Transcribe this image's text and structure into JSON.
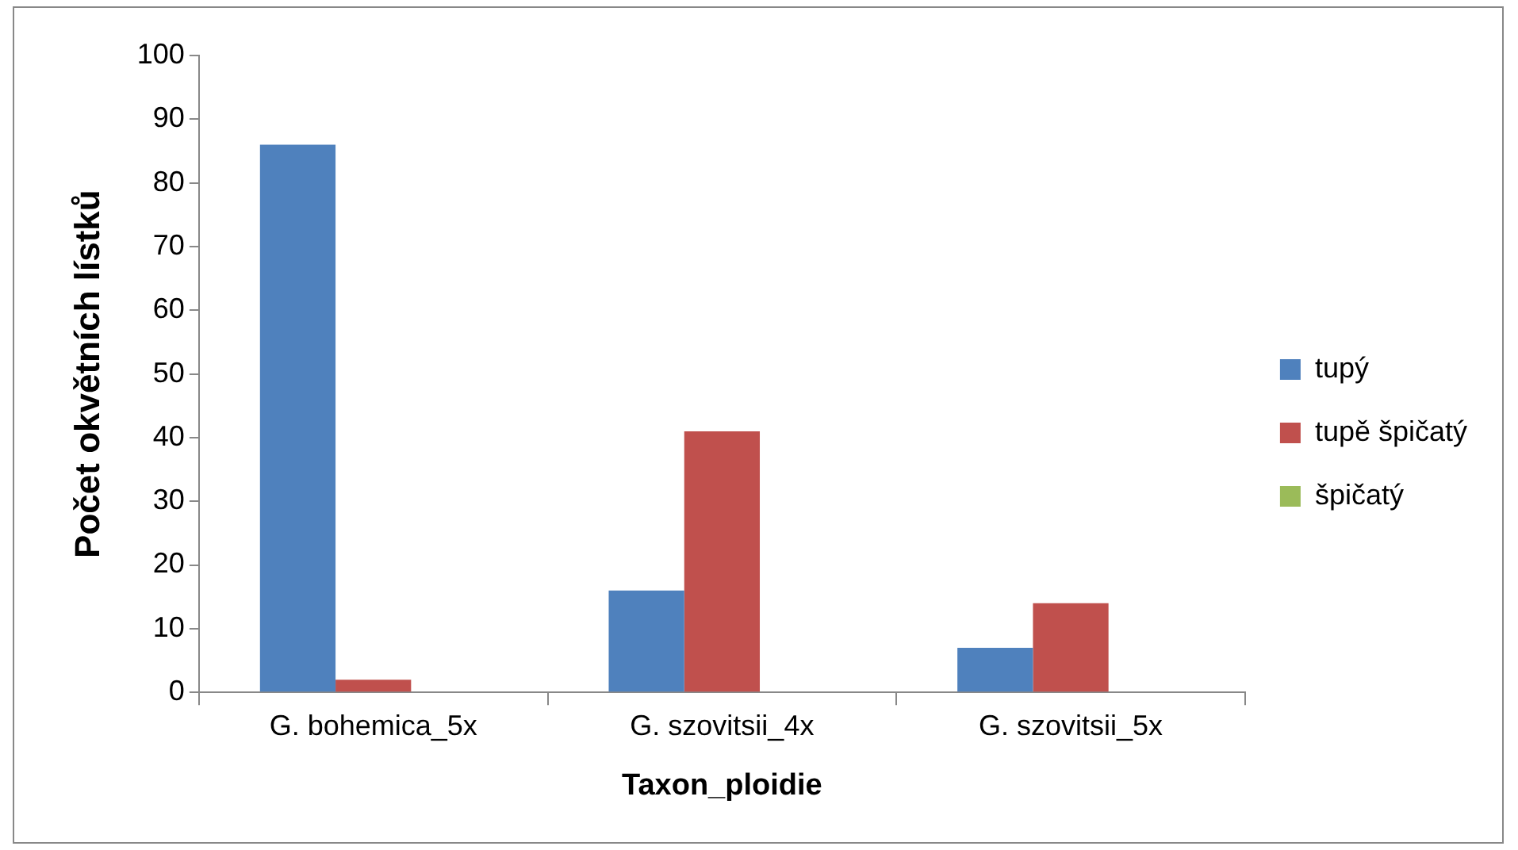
{
  "chart_data": {
    "type": "bar",
    "xlabel": "Taxon_ploidie",
    "ylabel": "Počet okvětních lístků",
    "categories": [
      "G. bohemica_5x",
      "G. szovitsii_4x",
      "G. szovitsii_5x"
    ],
    "series": [
      {
        "name": "tupý",
        "color": "#4f81bd",
        "values": [
          86,
          16,
          7
        ]
      },
      {
        "name": "tupě špičatý",
        "color": "#c0504d",
        "values": [
          2,
          41,
          14
        ]
      },
      {
        "name": "špičatý",
        "color": "#9bbb59",
        "values": [
          0,
          0,
          0
        ]
      }
    ],
    "ylim": [
      0,
      100
    ],
    "yticks": [
      0,
      10,
      20,
      30,
      40,
      50,
      60,
      70,
      80,
      90,
      100
    ],
    "grid": false,
    "legend": "right"
  }
}
